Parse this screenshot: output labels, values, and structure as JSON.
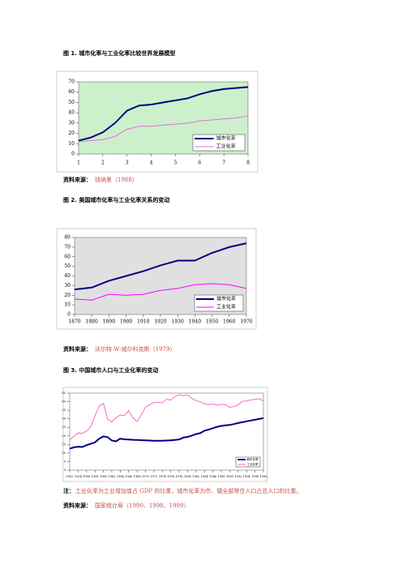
{
  "chart_data": [
    {
      "type": "line",
      "title": "图 1. 城市化率与工业化率比较世界发展模型",
      "source_label": "资料来源：",
      "source": "钱纳里（1988）",
      "x": [
        1,
        1.5,
        2,
        2.5,
        3,
        3.5,
        4,
        4.5,
        5,
        5.5,
        6,
        6.5,
        7,
        7.5,
        8
      ],
      "xlim": [
        1,
        8
      ],
      "xticks": [
        1,
        2,
        3,
        4,
        5,
        6,
        7,
        8
      ],
      "ylim": [
        0,
        70
      ],
      "yticks": [
        0,
        10,
        20,
        30,
        40,
        50,
        60,
        70
      ],
      "plot_background": "#ccf0cc",
      "legend": "lower right",
      "series": [
        {
          "name": "城市化率",
          "color": "#000080",
          "values": [
            13,
            16,
            21,
            30,
            42,
            47,
            48,
            50,
            52,
            54,
            58,
            61,
            63,
            64,
            65
          ]
        },
        {
          "name": "工业化率",
          "color": "#e070e0",
          "values": [
            12,
            13,
            14,
            17,
            24,
            27,
            27,
            28,
            29,
            30,
            32,
            33,
            34,
            35,
            37
          ]
        }
      ]
    },
    {
      "type": "line",
      "title": "图 2. 美国城市化率与工业化率关系的变动",
      "source_label": "资料来源：",
      "source": "沃尔特·W·威尔科克斯（1979）",
      "x": [
        1870,
        1880,
        1890,
        1900,
        1910,
        1920,
        1930,
        1940,
        1950,
        1960,
        1970
      ],
      "xlim": [
        1870,
        1970
      ],
      "xticks": [
        1870,
        1880,
        1890,
        1900,
        1910,
        1920,
        1930,
        1940,
        1950,
        1960,
        1970
      ],
      "ylim": [
        0,
        80
      ],
      "yticks": [
        0,
        10,
        20,
        30,
        40,
        50,
        60,
        70,
        80
      ],
      "plot_background": "#e0e0e0",
      "legend": "lower right",
      "series": [
        {
          "name": "城市化率",
          "color": "#000080",
          "values": [
            26,
            28,
            35,
            40,
            45,
            51,
            56,
            56,
            64,
            70,
            74
          ]
        },
        {
          "name": "工业化率",
          "color": "#ff00ff",
          "values": [
            16,
            15,
            21,
            20,
            21,
            25,
            27,
            31,
            32,
            31,
            27
          ]
        }
      ]
    },
    {
      "type": "line",
      "title": "图 3. 中国城市人口与工业化率的变动",
      "source_label": "资料来源：",
      "source": "国家统计局（1990、1998、1999）",
      "note_label": "注：",
      "note": "工业化率为工业增加值占 GDP 的比重，城市化率为市、镇全部常住人口占总人口的比重。",
      "x": [
        1952,
        1953,
        1954,
        1955,
        1956,
        1957,
        1958,
        1959,
        1960,
        1961,
        1962,
        1963,
        1964,
        1965,
        1966,
        1967,
        1968,
        1969,
        1970,
        1971,
        1972,
        1973,
        1974,
        1975,
        1976,
        1977,
        1978,
        1979,
        1980,
        1981,
        1982,
        1983,
        1984,
        1985,
        1986,
        1987,
        1988,
        1989,
        1990,
        1991,
        1992,
        1993,
        1994,
        1995,
        1996,
        1997,
        1998
      ],
      "xlim": [
        1952,
        1998
      ],
      "xticks": [
        1952,
        1954,
        1956,
        1958,
        1960,
        1962,
        1964,
        1966,
        1968,
        1970,
        1972,
        1974,
        1976,
        1978,
        1980,
        1982,
        1984,
        1986,
        1988,
        1990,
        1992,
        1994,
        1996,
        1998
      ],
      "ylim": [
        0,
        45
      ],
      "yticks": [
        0,
        5,
        10,
        15,
        20,
        25,
        30,
        35,
        40,
        45
      ],
      "plot_background": "#ffffff",
      "legend": "lower right",
      "series": [
        {
          "name": "城市化率",
          "color": "#000080",
          "values": [
            12.5,
            13.3,
            13.7,
            13.5,
            14.6,
            15.4,
            16.2,
            18.4,
            19.7,
            19.3,
            17.3,
            16.8,
            18.4,
            18.0,
            17.9,
            17.7,
            17.6,
            17.5,
            17.4,
            17.3,
            17.1,
            17.2,
            17.2,
            17.3,
            17.4,
            17.6,
            17.9,
            19.0,
            19.4,
            20.2,
            21.1,
            21.6,
            23.0,
            23.7,
            24.5,
            25.3,
            25.8,
            26.2,
            26.4,
            26.9,
            27.5,
            28.0,
            28.5,
            29.0,
            29.4,
            29.9,
            30.4
          ]
        },
        {
          "name": "工业化率",
          "color": "#ff66cc",
          "values": [
            17.6,
            19.8,
            21.7,
            21.5,
            22.9,
            25.4,
            31.7,
            37.4,
            39.0,
            29.7,
            28.3,
            30.6,
            32.2,
            31.8,
            34.7,
            30.6,
            28.4,
            32.3,
            36.8,
            38.2,
            39.5,
            39.5,
            39.4,
            41.5,
            40.9,
            42.9,
            44.1,
            43.6,
            43.9,
            41.9,
            40.6,
            39.9,
            38.7,
            38.3,
            38.6,
            38.0,
            38.4,
            38.2,
            36.7,
            37.1,
            38.2,
            40.2,
            40.4,
            41.0,
            41.4,
            41.7,
            40.4
          ]
        }
      ]
    }
  ]
}
